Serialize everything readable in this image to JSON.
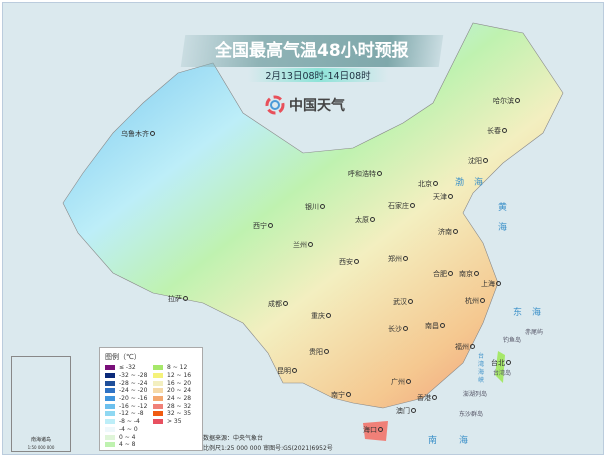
{
  "title": "全国最高气温48小时预报",
  "subtitle": "2月13日08时-14日08时",
  "logo_text": "中国天气",
  "cities": [
    {
      "name": "乌鲁木齐"
    },
    {
      "name": "哈尔滨"
    },
    {
      "name": "长春"
    },
    {
      "name": "沈阳"
    },
    {
      "name": "呼和浩特"
    },
    {
      "name": "北京"
    },
    {
      "name": "天津"
    },
    {
      "name": "银川"
    },
    {
      "name": "石家庄"
    },
    {
      "name": "太原"
    },
    {
      "name": "济南"
    },
    {
      "name": "西宁"
    },
    {
      "name": "兰州"
    },
    {
      "name": "西安"
    },
    {
      "name": "郑州"
    },
    {
      "name": "合肥"
    },
    {
      "name": "南京"
    },
    {
      "name": "上海"
    },
    {
      "name": "拉萨"
    },
    {
      "name": "成都"
    },
    {
      "name": "武汉"
    },
    {
      "name": "杭州"
    },
    {
      "name": "重庆"
    },
    {
      "name": "长沙"
    },
    {
      "name": "南昌"
    },
    {
      "name": "贵阳"
    },
    {
      "name": "福州"
    },
    {
      "name": "台北"
    },
    {
      "name": "昆明"
    },
    {
      "name": "南宁"
    },
    {
      "name": "广州"
    },
    {
      "name": "香港"
    },
    {
      "name": "澳门"
    },
    {
      "name": "海口"
    }
  ],
  "seas": {
    "bohai": "渤海",
    "huanghai": "黄海",
    "donghai": "东海",
    "nanhai": "南海",
    "strait": "台湾海峡"
  },
  "islands": {
    "diaoyu": "钓鱼岛",
    "chiwei": "赤尾屿",
    "taiwan": "台湾岛",
    "penghu": "澎湖列岛",
    "dongsha": "东沙群岛"
  },
  "legend": {
    "title": "图例（℃）",
    "items": [
      {
        "label": "≤ -32",
        "color": "#7a0f7a"
      },
      {
        "label": "-32 ~ -28",
        "color": "#0b2a7a"
      },
      {
        "label": "-28 ~ -24",
        "color": "#1f4f9a"
      },
      {
        "label": "-24 ~ -20",
        "color": "#2f72c4"
      },
      {
        "label": "-20 ~ -16",
        "color": "#3f95de"
      },
      {
        "label": "-16 ~ -12",
        "color": "#6cc0ee"
      },
      {
        "label": "-12 ~ -8",
        "color": "#8fd8f2"
      },
      {
        "label": "-8 ~ -4",
        "color": "#bdeef8"
      },
      {
        "label": "-4 ~ 0",
        "color": "#eef8fb"
      },
      {
        "label": "0 ~ 4",
        "color": "#dff5d8"
      },
      {
        "label": "4 ~ 8",
        "color": "#bff2b0"
      },
      {
        "label": "8 ~ 12",
        "color": "#a6e86a"
      },
      {
        "label": "12 ~ 16",
        "color": "#f5f27a"
      },
      {
        "label": "16 ~ 20",
        "color": "#f3efc0"
      },
      {
        "label": "20 ~ 24",
        "color": "#f5d9a8"
      },
      {
        "label": "24 ~ 28",
        "color": "#f4a870"
      },
      {
        "label": "28 ~ 32",
        "color": "#f08078"
      },
      {
        "label": "32 ~ 35",
        "color": "#f05a10"
      },
      {
        "label": "> 35",
        "color": "#e85060"
      }
    ]
  },
  "source": "数据来源：中央气象台",
  "scale_line": "比例尺1:25 000 000   审图号:GS(2021)6952号",
  "inset": {
    "title": "南海诸岛",
    "scale": "1:50 000 000"
  }
}
